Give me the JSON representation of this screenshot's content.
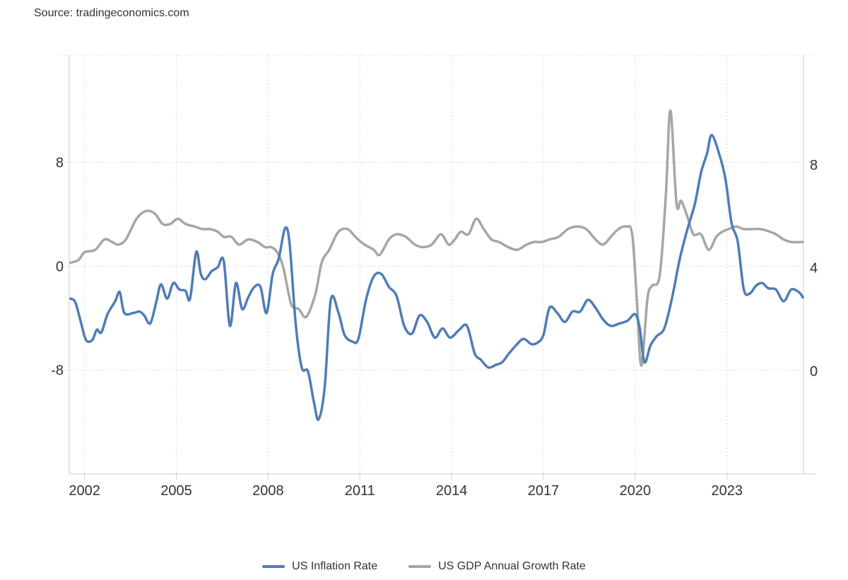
{
  "source": "Source: tradingeconomics.com",
  "chart_data": {
    "type": "line",
    "title": "",
    "xlabel": "",
    "ylabel": "",
    "x_ticks": [
      "2002",
      "2005",
      "2008",
      "2011",
      "2014",
      "2017",
      "2020",
      "2023"
    ],
    "xlim": [
      2001.5,
      2025.5
    ],
    "left_axis": {
      "ticks": [
        8,
        0,
        -8
      ],
      "ylim": [
        -16,
        16.25
      ]
    },
    "right_axis": {
      "ticks": [
        8,
        4,
        0
      ],
      "ylim": [
        -4,
        12.25
      ]
    },
    "grid": true,
    "legend": "bottom-center",
    "series": [
      {
        "name": "US Inflation Rate",
        "axis": "left",
        "color": "#4f7db5",
        "x": [
          2001.54,
          2001.7,
          2001.9,
          2002.05,
          2002.25,
          2002.4,
          2002.55,
          2002.75,
          2003.0,
          2003.15,
          2003.3,
          2003.6,
          2003.8,
          2003.95,
          2004.15,
          2004.35,
          2004.5,
          2004.7,
          2004.9,
          2005.1,
          2005.3,
          2005.45,
          2005.65,
          2005.8,
          2005.95,
          2006.15,
          2006.35,
          2006.55,
          2006.75,
          2006.95,
          2007.15,
          2007.35,
          2007.55,
          2007.75,
          2007.95,
          2008.15,
          2008.35,
          2008.55,
          2008.7,
          2008.9,
          2009.1,
          2009.3,
          2009.5,
          2009.65,
          2009.85,
          2010.05,
          2010.3,
          2010.5,
          2010.75,
          2010.95,
          2011.2,
          2011.45,
          2011.7,
          2011.95,
          2012.2,
          2012.45,
          2012.7,
          2012.95,
          2013.2,
          2013.45,
          2013.7,
          2013.95,
          2014.25,
          2014.5,
          2014.75,
          2014.95,
          2015.2,
          2015.45,
          2015.65,
          2015.85,
          2016.1,
          2016.35,
          2016.6,
          2016.8,
          2017.0,
          2017.2,
          2017.45,
          2017.7,
          2017.95,
          2018.2,
          2018.45,
          2018.7,
          2018.95,
          2019.2,
          2019.5,
          2019.75,
          2020.0,
          2020.15,
          2020.3,
          2020.5,
          2020.7,
          2020.95,
          2021.2,
          2021.45,
          2021.7,
          2021.95,
          2022.15,
          2022.35,
          2022.5,
          2022.75,
          2022.95,
          2023.15,
          2023.35,
          2023.55,
          2023.75,
          2023.95,
          2024.15,
          2024.35,
          2024.6,
          2024.85,
          2025.1,
          2025.35,
          2025.48
        ],
        "values": [
          -2.5,
          -2.8,
          -4.5,
          -5.7,
          -5.7,
          -4.9,
          -5.1,
          -3.7,
          -2.7,
          -2.0,
          -3.6,
          -3.6,
          -3.5,
          -3.8,
          -4.4,
          -2.7,
          -1.4,
          -2.5,
          -1.3,
          -1.8,
          -1.9,
          -2.5,
          1.1,
          -0.6,
          -1.0,
          -0.4,
          -0.1,
          0.4,
          -4.6,
          -1.3,
          -3.3,
          -2.4,
          -1.6,
          -1.6,
          -3.6,
          -0.6,
          0.6,
          2.9,
          1.8,
          -4.4,
          -7.8,
          -8.1,
          -10.5,
          -11.8,
          -9.3,
          -2.6,
          -3.6,
          -5.3,
          -5.8,
          -5.6,
          -2.6,
          -0.8,
          -0.6,
          -1.6,
          -2.3,
          -4.6,
          -5.2,
          -3.8,
          -4.3,
          -5.5,
          -4.8,
          -5.5,
          -4.9,
          -4.6,
          -6.7,
          -7.2,
          -7.8,
          -7.6,
          -7.4,
          -6.8,
          -6.1,
          -5.6,
          -6.0,
          -5.9,
          -5.3,
          -3.2,
          -3.6,
          -4.3,
          -3.5,
          -3.5,
          -2.6,
          -3.2,
          -4.1,
          -4.6,
          -4.4,
          -4.2,
          -3.7,
          -4.8,
          -7.4,
          -6.1,
          -5.4,
          -4.8,
          -2.5,
          0.5,
          2.8,
          4.8,
          7.2,
          8.7,
          10.1,
          8.6,
          6.7,
          3.3,
          1.9,
          -1.8,
          -2.1,
          -1.5,
          -1.3,
          -1.7,
          -1.8,
          -2.7,
          -1.8,
          -2.0,
          -2.4
        ]
      },
      {
        "name": "US GDP Annual Growth Rate",
        "axis": "right",
        "color": "#a6a6a6",
        "x": [
          2001.54,
          2001.8,
          2002.0,
          2002.35,
          2002.65,
          2002.9,
          2003.1,
          2003.35,
          2003.7,
          2004.0,
          2004.3,
          2004.55,
          2004.8,
          2005.05,
          2005.3,
          2005.6,
          2005.85,
          2006.1,
          2006.35,
          2006.55,
          2006.8,
          2007.05,
          2007.35,
          2007.65,
          2007.9,
          2008.1,
          2008.3,
          2008.5,
          2008.75,
          2009.0,
          2009.25,
          2009.55,
          2009.75,
          2010.0,
          2010.3,
          2010.6,
          2010.85,
          2011.15,
          2011.45,
          2011.65,
          2011.95,
          2012.2,
          2012.5,
          2012.8,
          2013.05,
          2013.35,
          2013.65,
          2013.9,
          2014.1,
          2014.3,
          2014.55,
          2014.8,
          2015.05,
          2015.3,
          2015.55,
          2015.85,
          2016.15,
          2016.45,
          2016.7,
          2016.95,
          2017.2,
          2017.5,
          2017.8,
          2018.1,
          2018.4,
          2018.7,
          2018.95,
          2019.2,
          2019.45,
          2019.7,
          2019.9,
          2020.05,
          2020.2,
          2020.4,
          2020.55,
          2020.8,
          2021.0,
          2021.15,
          2021.35,
          2021.5,
          2021.7,
          2021.9,
          2022.15,
          2022.4,
          2022.65,
          2022.85,
          2023.05,
          2023.3,
          2023.55,
          2023.85,
          2024.1,
          2024.4,
          2024.6,
          2024.85,
          2025.1,
          2025.48
        ],
        "values": [
          4.2,
          4.3,
          4.6,
          4.7,
          5.1,
          5.0,
          4.9,
          5.1,
          5.9,
          6.2,
          6.1,
          5.7,
          5.7,
          5.9,
          5.7,
          5.6,
          5.5,
          5.5,
          5.4,
          5.2,
          5.2,
          4.9,
          5.1,
          5.0,
          4.8,
          4.8,
          4.6,
          4.0,
          2.6,
          2.4,
          2.1,
          3.0,
          4.2,
          4.7,
          5.4,
          5.5,
          5.2,
          4.9,
          4.7,
          4.5,
          5.1,
          5.3,
          5.2,
          4.9,
          4.8,
          4.9,
          5.3,
          4.9,
          5.1,
          5.4,
          5.3,
          5.9,
          5.5,
          5.1,
          5.0,
          4.8,
          4.7,
          4.9,
          5.0,
          5.0,
          5.1,
          5.2,
          5.5,
          5.6,
          5.5,
          5.1,
          4.9,
          5.2,
          5.5,
          5.6,
          5.3,
          2.8,
          0.2,
          2.8,
          3.3,
          3.7,
          6.8,
          10.1,
          6.5,
          6.6,
          6.0,
          5.3,
          5.3,
          4.7,
          5.2,
          5.4,
          5.5,
          5.6,
          5.5,
          5.5,
          5.5,
          5.4,
          5.3,
          5.1,
          5.0,
          5.0
        ]
      }
    ]
  },
  "legend": {
    "items": [
      {
        "label": "US Inflation Rate",
        "color": "#4f7db5"
      },
      {
        "label": "US GDP Annual Growth Rate",
        "color": "#a6a6a6"
      }
    ]
  }
}
